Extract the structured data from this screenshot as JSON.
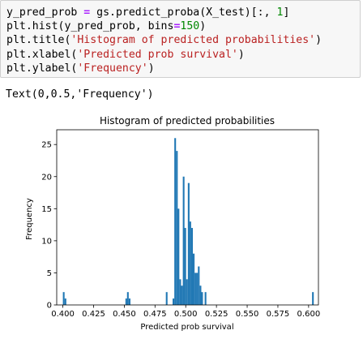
{
  "code_cell": {
    "lines": [
      {
        "tokens": [
          {
            "t": "y_pred_prob "
          },
          {
            "t": "=",
            "c": "op"
          },
          {
            "t": " gs.predict_proba(X_test)[:, "
          },
          {
            "t": "1",
            "c": "num"
          },
          {
            "t": "]"
          }
        ]
      },
      {
        "tokens": [
          {
            "t": "plt.hist(y_pred_prob, bins"
          },
          {
            "t": "=",
            "c": "op"
          },
          {
            "t": "150",
            "c": "num"
          },
          {
            "t": ")"
          }
        ]
      },
      {
        "tokens": [
          {
            "t": "plt.title("
          },
          {
            "t": "'Histogram of predicted probabilities'",
            "c": "str"
          },
          {
            "t": ")"
          }
        ]
      },
      {
        "tokens": [
          {
            "t": "plt.xlabel("
          },
          {
            "t": "'Predicted prob survival'",
            "c": "str"
          },
          {
            "t": ")"
          }
        ]
      },
      {
        "tokens": [
          {
            "t": "plt.ylabel("
          },
          {
            "t": "'Frequency'",
            "c": "str"
          },
          {
            "t": ")"
          }
        ]
      }
    ]
  },
  "output": {
    "text": "Text(0,0.5,'Frequency')"
  },
  "colors": {
    "bar": "#1f77b4",
    "cell_background": "#f7f7f7",
    "cell_border": "#cfcfcf"
  },
  "chart_data": {
    "type": "bar",
    "title": "Histogram of predicted probabilities",
    "xlabel": "Predicted prob survival",
    "ylabel": "Frequency",
    "xlim": [
      0.395,
      0.608
    ],
    "ylim": [
      0,
      27.3
    ],
    "xticks": [
      "0.400",
      "0.425",
      "0.450",
      "0.475",
      "0.500",
      "0.525",
      "0.550",
      "0.575",
      "0.600"
    ],
    "yticks": [
      "0",
      "5",
      "10",
      "15",
      "20",
      "25"
    ],
    "grid": false,
    "bin_width": 0.00137,
    "bins": [
      {
        "x": 0.4007,
        "y": 2
      },
      {
        "x": 0.4021,
        "y": 1
      },
      {
        "x": 0.4516,
        "y": 1
      },
      {
        "x": 0.4529,
        "y": 2
      },
      {
        "x": 0.4543,
        "y": 1
      },
      {
        "x": 0.4845,
        "y": 2
      },
      {
        "x": 0.49,
        "y": 1
      },
      {
        "x": 0.4914,
        "y": 26
      },
      {
        "x": 0.4928,
        "y": 24
      },
      {
        "x": 0.4941,
        "y": 15
      },
      {
        "x": 0.4955,
        "y": 4
      },
      {
        "x": 0.4969,
        "y": 3
      },
      {
        "x": 0.4983,
        "y": 20
      },
      {
        "x": 0.4996,
        "y": 12
      },
      {
        "x": 0.501,
        "y": 4
      },
      {
        "x": 0.5024,
        "y": 19
      },
      {
        "x": 0.5037,
        "y": 13
      },
      {
        "x": 0.5051,
        "y": 12
      },
      {
        "x": 0.5065,
        "y": 8
      },
      {
        "x": 0.5079,
        "y": 5
      },
      {
        "x": 0.5092,
        "y": 5
      },
      {
        "x": 0.5106,
        "y": 6
      },
      {
        "x": 0.512,
        "y": 3
      },
      {
        "x": 0.5133,
        "y": 2
      },
      {
        "x": 0.5161,
        "y": 2
      },
      {
        "x": 0.6035,
        "y": 2
      }
    ]
  }
}
